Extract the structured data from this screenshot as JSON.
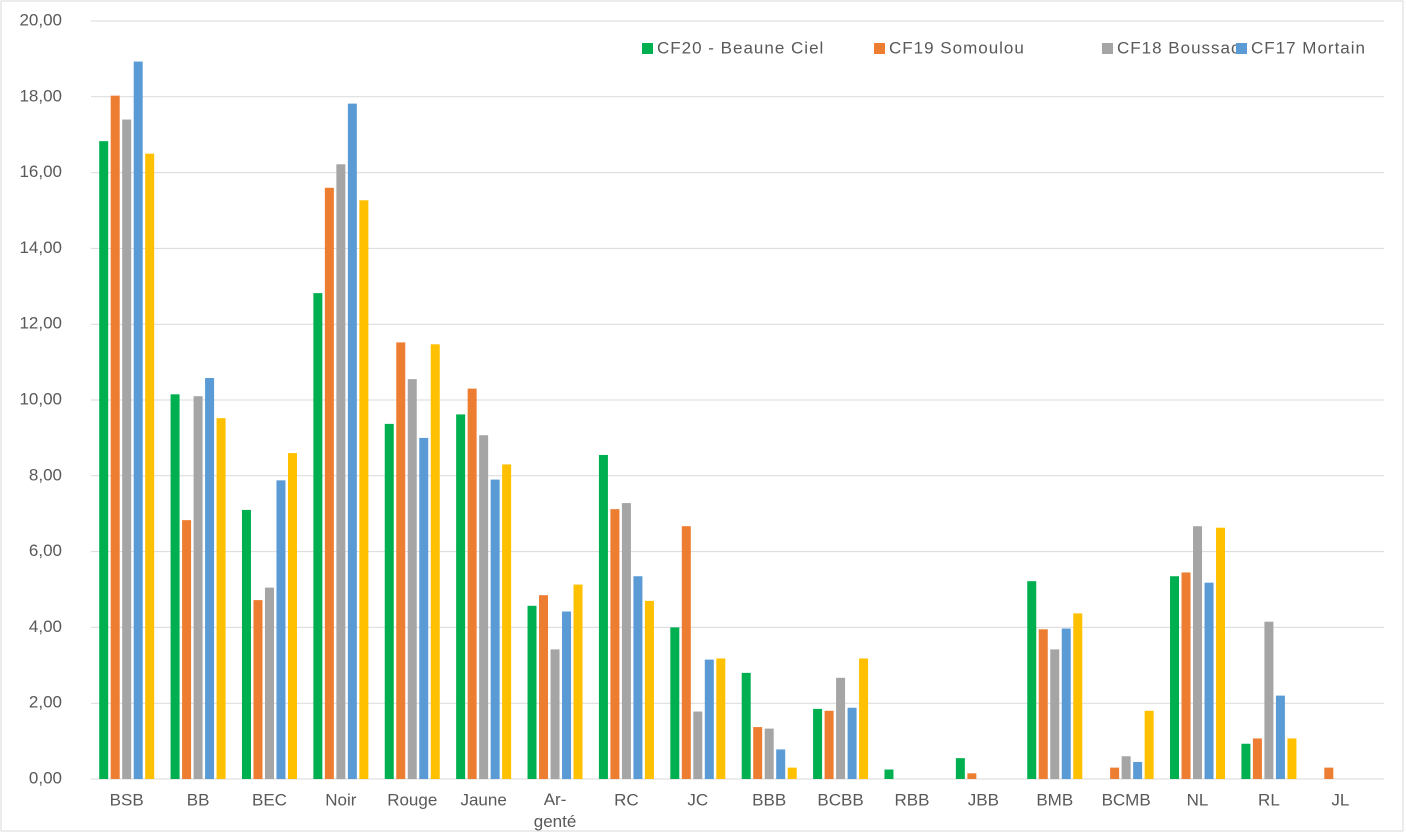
{
  "chart_data": {
    "type": "bar",
    "categories": [
      "BSB",
      "BB",
      "BEC",
      "Noir",
      "Rouge",
      "Jaune",
      "Ar-\ngenté",
      "RC",
      "JC",
      "BBB",
      "BCBB",
      "RBB",
      "JBB",
      "BMB",
      "BCMB",
      "NL",
      "RL",
      "JL"
    ],
    "series": [
      {
        "name": "CF20 - Beaune Ciel",
        "color": "#00b050",
        "values": [
          16.83,
          10.15,
          7.1,
          12.82,
          9.37,
          9.62,
          4.57,
          8.55,
          4.0,
          2.8,
          1.85,
          0.25,
          0.55,
          5.22,
          0,
          5.35,
          0.93,
          0
        ]
      },
      {
        "name": "CF19 Somoulou",
        "color": "#ed7d31",
        "values": [
          18.03,
          6.83,
          4.72,
          15.6,
          11.52,
          10.3,
          4.85,
          7.12,
          6.67,
          1.37,
          1.8,
          0,
          0.15,
          3.95,
          0.3,
          5.45,
          1.07,
          0.3
        ]
      },
      {
        "name": "CF18 Boussac",
        "color": "#a5a5a5",
        "values": [
          17.4,
          10.1,
          5.05,
          16.22,
          10.55,
          9.07,
          3.42,
          7.28,
          1.78,
          1.33,
          2.67,
          0,
          0,
          3.42,
          0.6,
          6.67,
          4.15,
          0
        ]
      },
      {
        "name": "CF17 Mortain",
        "color": "#5b9bd5",
        "values": [
          18.93,
          10.58,
          7.88,
          17.82,
          9.0,
          7.9,
          4.42,
          5.35,
          3.15,
          0.78,
          1.88,
          0,
          0,
          3.97,
          0.45,
          5.18,
          2.2,
          0
        ]
      },
      {
        "color": "#ffc000",
        "values": [
          16.5,
          9.52,
          8.6,
          15.27,
          11.47,
          8.3,
          5.13,
          4.7,
          3.18,
          0.3,
          3.18,
          0,
          0,
          4.37,
          1.8,
          6.63,
          1.07,
          0
        ]
      }
    ],
    "ylim": [
      0,
      20
    ],
    "yticks": [
      {
        "value": 0,
        "label": "0,00"
      },
      {
        "value": 2,
        "label": "2,00"
      },
      {
        "value": 4,
        "label": "4,00"
      },
      {
        "value": 6,
        "label": "6,00"
      },
      {
        "value": 8,
        "label": "8,00"
      },
      {
        "value": 10,
        "label": "10,00"
      },
      {
        "value": 12,
        "label": "12,00"
      },
      {
        "value": 14,
        "label": "14,00"
      },
      {
        "value": 16,
        "label": "16,00"
      },
      {
        "value": 18,
        "label": "18,00"
      },
      {
        "value": 20,
        "label": "20,00"
      }
    ],
    "grid": true,
    "legend": "top-right"
  }
}
